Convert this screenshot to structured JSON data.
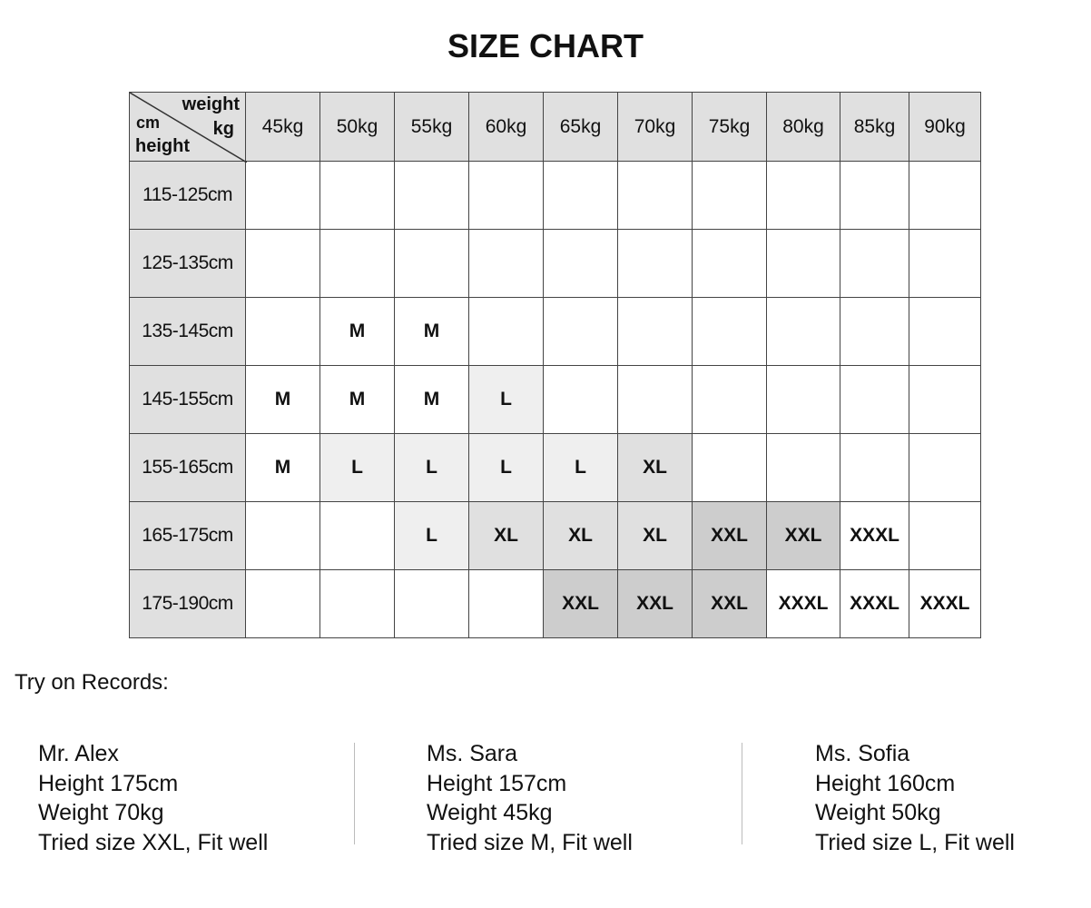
{
  "title": "SIZE CHART",
  "corner": {
    "weight": "weight",
    "kg": "kg",
    "cm": "cm",
    "height": "height"
  },
  "weights": [
    "45kg",
    "50kg",
    "55kg",
    "60kg",
    "65kg",
    "70kg",
    "75kg",
    "80kg",
    "85kg",
    "90kg"
  ],
  "rows": [
    {
      "height": "115-125cm",
      "sizes": [
        "",
        "",
        "",
        "",
        "",
        "",
        "",
        "",
        "",
        ""
      ]
    },
    {
      "height": "125-135cm",
      "sizes": [
        "",
        "",
        "",
        "",
        "",
        "",
        "",
        "",
        "",
        ""
      ]
    },
    {
      "height": "135-145cm",
      "sizes": [
        "",
        "M",
        "M",
        "",
        "",
        "",
        "",
        "",
        "",
        ""
      ]
    },
    {
      "height": "145-155cm",
      "sizes": [
        "M",
        "M",
        "M",
        "L",
        "",
        "",
        "",
        "",
        "",
        ""
      ]
    },
    {
      "height": "155-165cm",
      "sizes": [
        "M",
        "L",
        "L",
        "L",
        "L",
        "XL",
        "",
        "",
        "",
        ""
      ]
    },
    {
      "height": "165-175cm",
      "sizes": [
        "",
        "",
        "L",
        "XL",
        "XL",
        "XL",
        "XXL",
        "XXL",
        "XXXL",
        ""
      ]
    },
    {
      "height": "175-190cm",
      "sizes": [
        "",
        "",
        "",
        "",
        "XXL",
        "XXL",
        "XXL",
        "XXXL",
        "XXXL",
        "XXXL"
      ]
    }
  ],
  "size_colors": {
    "M": "#ffffff",
    "L": "#efefef",
    "XL": "#e0e0e0",
    "XXL": "#cdcdcd",
    "XXXL": "#ffffff"
  },
  "records_label": "Try on Records:",
  "records": [
    {
      "name": "Mr. Alex",
      "height": "Height 175cm",
      "weight": "Weight 70kg",
      "result": "Tried size XXL, Fit well"
    },
    {
      "name": "Ms. Sara",
      "height": "Height 157cm",
      "weight": "Weight 45kg",
      "result": "Tried size M, Fit well"
    },
    {
      "name": "Ms. Sofia",
      "height": "Height 160cm",
      "weight": "Weight 50kg",
      "result": "Tried size L, Fit well"
    }
  ]
}
